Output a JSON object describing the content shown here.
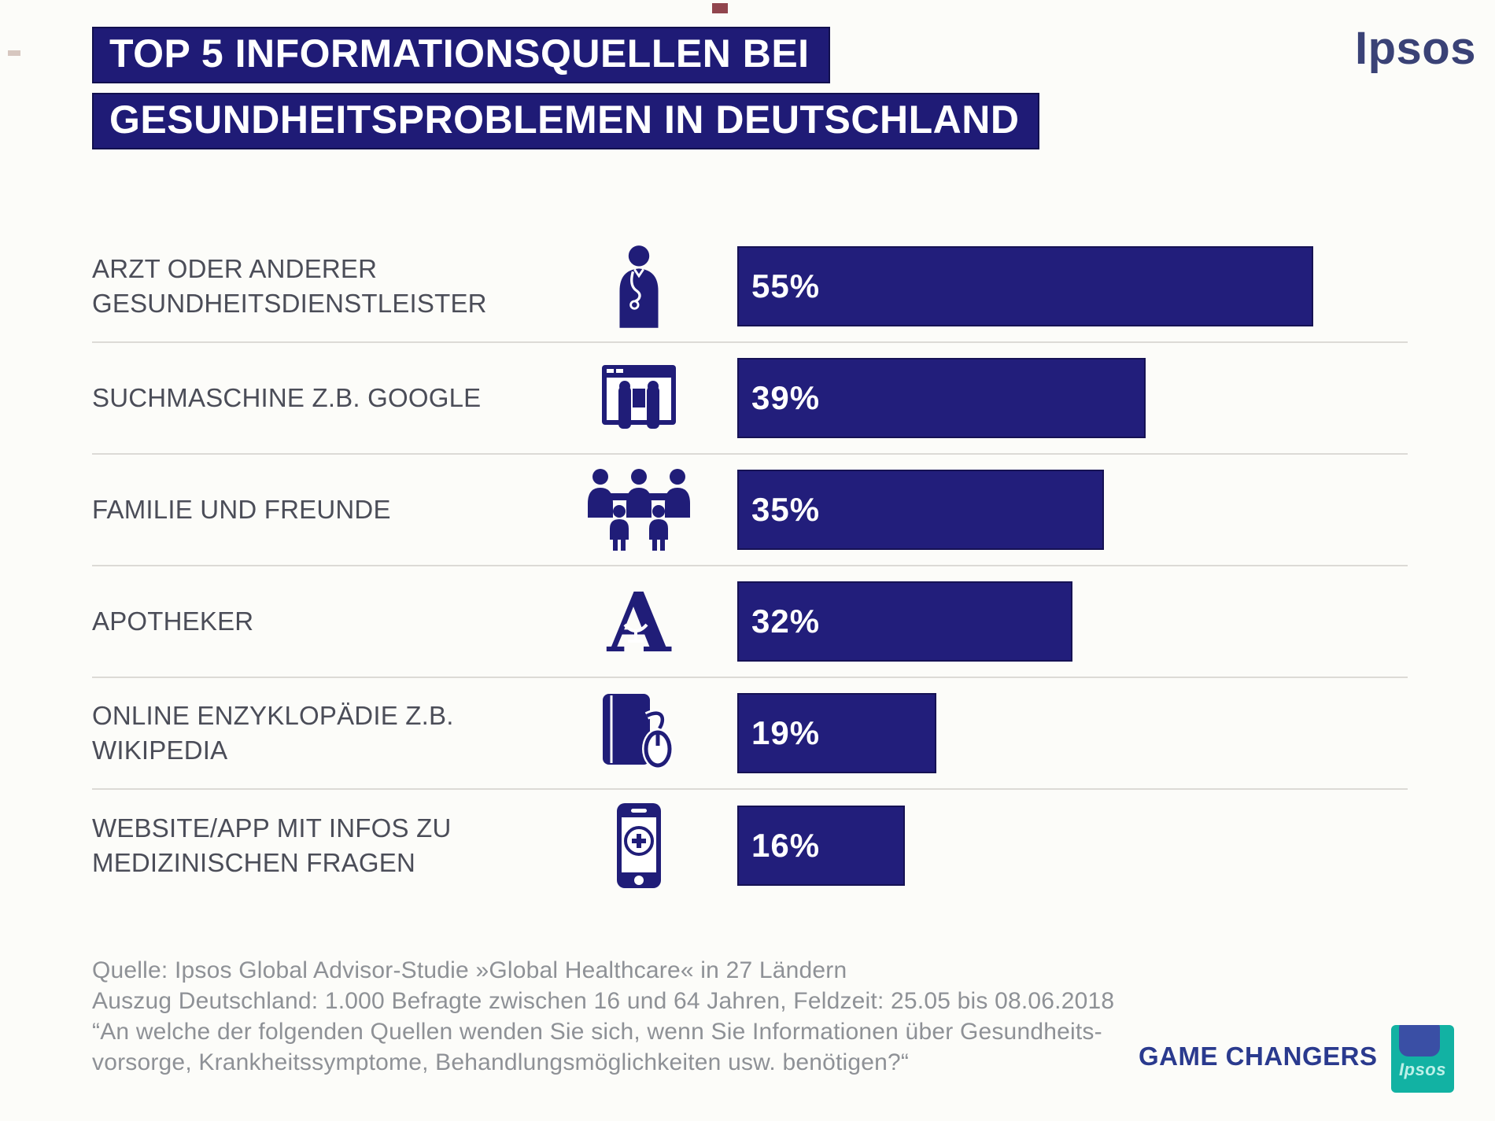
{
  "header": {
    "brand": "Ipsos",
    "title_line1": "TOP 5 INFORMATIONSQUELLEN BEI",
    "title_line2": "GESUNDHEITSPROBLEMEN IN DEUTSCHLAND"
  },
  "chart_data": {
    "type": "bar",
    "orientation": "horizontal",
    "title": "Top 5 Informationsquellen bei Gesundheitsproblemen in Deutschland",
    "unit": "%",
    "xlim": [
      0,
      60
    ],
    "grid": false,
    "legend_position": "none",
    "categories": [
      "ARZT ODER ANDERER GESUNDHEITSDIENSTLEISTER",
      "SUCHMASCHINE Z.B. GOOGLE",
      "FAMILIE UND FREUNDE",
      "APOTHEKER",
      "ONLINE ENZYKLOPÄDIE Z.B. WIKIPEDIA",
      "WEBSITE/APP MIT INFOS ZU MEDIZINISCHEN FRAGEN"
    ],
    "values": [
      55,
      39,
      35,
      32,
      19,
      16
    ],
    "value_labels": [
      "55%",
      "39%",
      "35%",
      "32%",
      "19%",
      "16%"
    ],
    "icons": [
      "doctor-icon",
      "search-engine-icon",
      "family-icon",
      "pharmacy-a-icon",
      "encyclopedia-mouse-icon",
      "medical-app-icon"
    ],
    "bar_color": "#221e7b"
  },
  "footer": {
    "source_line1": "Quelle: Ipsos Global Advisor-Studie »Global Healthcare« in 27 Ländern",
    "source_line2": "Auszug Deutschland: 1.000 Befragte zwischen 16 und 64 Jahren, Feldzeit: 25.05 bis 08.06.2018",
    "question_line1": "“An welche der folgenden Quellen wenden Sie sich, wenn Sie Informationen über Gesundheits-",
    "question_line2": "vorsorge, Krankheitssymptome, Behandlungsmöglichkeiten usw. benötigen?“",
    "tagline": "GAME CHANGERS",
    "logo_text": "Ipsos"
  },
  "colors": {
    "bar": "#221e7b",
    "title_background": "#1f1b76",
    "label_text": "#4b4d58",
    "footer_text": "#8e9196",
    "tagline_text": "#2a3a8e",
    "brand_text": "#3a4276",
    "logo_teal": "#12b2a3",
    "logo_blue": "#3a4fa5"
  }
}
